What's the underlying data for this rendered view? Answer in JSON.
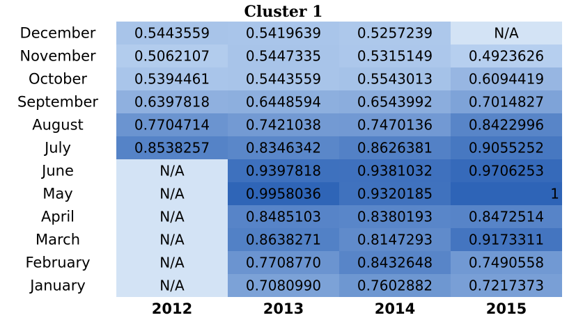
{
  "chart_data": {
    "type": "heatmap",
    "title": "Cluster 1",
    "columns": [
      "2012",
      "2013",
      "2014",
      "2015"
    ],
    "rows": [
      "December",
      "November",
      "October",
      "September",
      "August",
      "July",
      "June",
      "May",
      "April",
      "March",
      "February",
      "January"
    ],
    "values": [
      [
        "0.5443559",
        "0.5419639",
        "0.5257239",
        "N/A"
      ],
      [
        "0.5062107",
        "0.5447335",
        "0.5315149",
        "0.4923626"
      ],
      [
        "0.5394461",
        "0.5443559",
        "0.5543013",
        "0.6094419"
      ],
      [
        "0.6397818",
        "0.6448594",
        "0.6543992",
        "0.7014827"
      ],
      [
        "0.7704714",
        "0.7421038",
        "0.7470136",
        "0.8422996"
      ],
      [
        "0.8538257",
        "0.8346342",
        "0.8626381",
        "0.9055252"
      ],
      [
        "N/A",
        "0.9397818",
        "0.9381032",
        "0.9706253"
      ],
      [
        "N/A",
        "0.9958036",
        "0.9320185",
        "1"
      ],
      [
        "N/A",
        "0.8485103",
        "0.8380193",
        "0.8472514"
      ],
      [
        "N/A",
        "0.8638271",
        "0.8147293",
        "0.9173311"
      ],
      [
        "N/A",
        "0.7708770",
        "0.8432648",
        "0.7490558"
      ],
      [
        "N/A",
        "0.7080990",
        "0.7602882",
        "0.7217373"
      ]
    ],
    "colors": {
      "na": "#d3e3f5",
      "low": "#b6cfef",
      "high": "#2e64b7",
      "grid": "#ffffff"
    }
  }
}
